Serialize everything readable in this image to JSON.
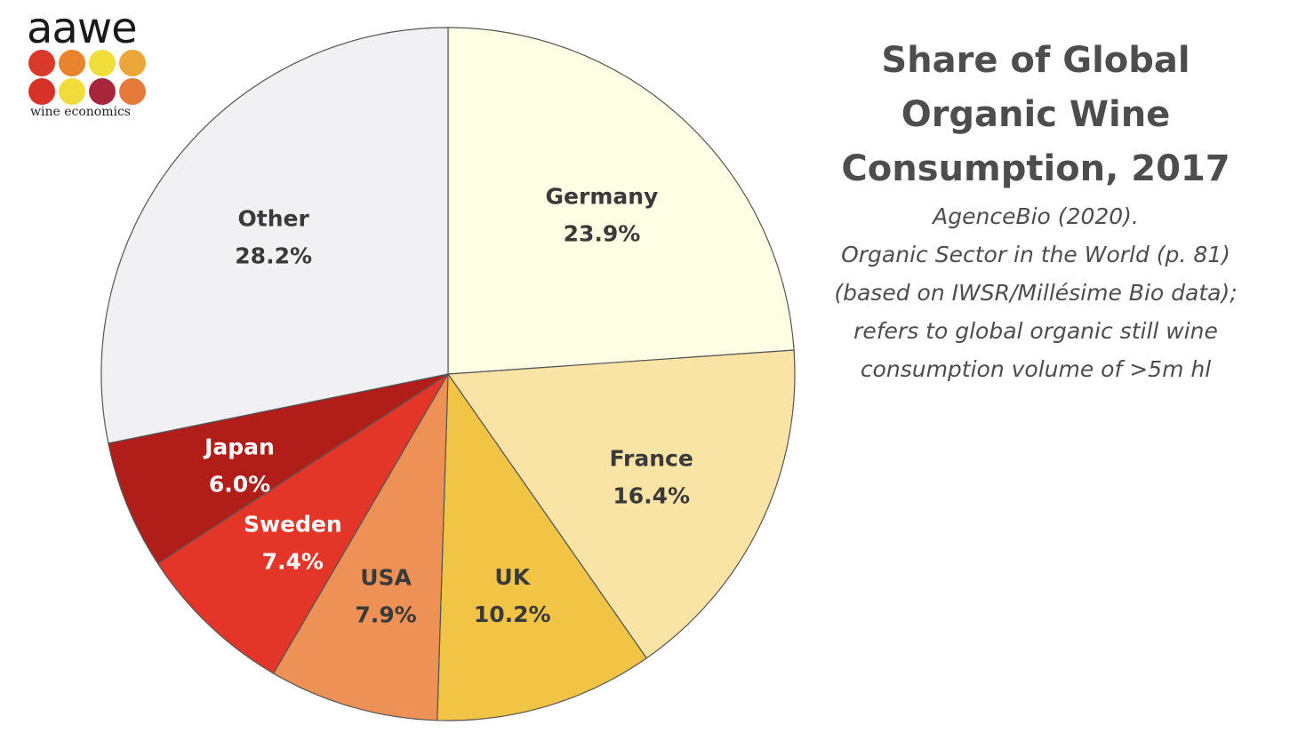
{
  "logo": {
    "word": "aawe",
    "tagline": "wine economics",
    "dot_colors": [
      "#d93a2b",
      "#e8832e",
      "#f1de3a",
      "#eba63a",
      "#d6322a",
      "#f2dc3c",
      "#a8263c",
      "#e57a3a"
    ]
  },
  "title_lines": [
    "Share of Global",
    "Organic Wine",
    "Consumption, 2017"
  ],
  "subtitle_lines": [
    "AgenceBio (2020).",
    "Organic Sector in the World (p. 81)",
    "(based on IWSR/Millésime Bio data);",
    "refers to global organic still wine",
    "consumption volume of  >5m hl"
  ],
  "chart_data": {
    "type": "pie",
    "title": "Share of Global Organic Wine Consumption, 2017",
    "unit": "%",
    "start_angle_deg": 0,
    "direction": "clockwise",
    "slices": [
      {
        "label": "Germany",
        "value": 23.9,
        "value_label": "23.9%",
        "color": "#fefee4",
        "text_color": "#3a3a3a"
      },
      {
        "label": "France",
        "value": 16.4,
        "value_label": "16.4%",
        "color": "#f9e4a6",
        "text_color": "#3a3a3a"
      },
      {
        "label": "UK",
        "value": 10.2,
        "value_label": "10.2%",
        "color": "#f2c445",
        "text_color": "#3a3a3a"
      },
      {
        "label": "USA",
        "value": 7.9,
        "value_label": "7.9%",
        "color": "#ed9156",
        "text_color": "#3a3a3a"
      },
      {
        "label": "Sweden",
        "value": 7.4,
        "value_label": "7.4%",
        "color": "#e43628",
        "text_color": "#ffffff"
      },
      {
        "label": "Japan",
        "value": 6.0,
        "value_label": "6.0%",
        "color": "#b11e1a",
        "text_color": "#ffffff"
      },
      {
        "label": "Other",
        "value": 28.2,
        "value_label": "28.2%",
        "color": "#f1f1f3",
        "text_color": "#3a3a3a"
      }
    ]
  }
}
